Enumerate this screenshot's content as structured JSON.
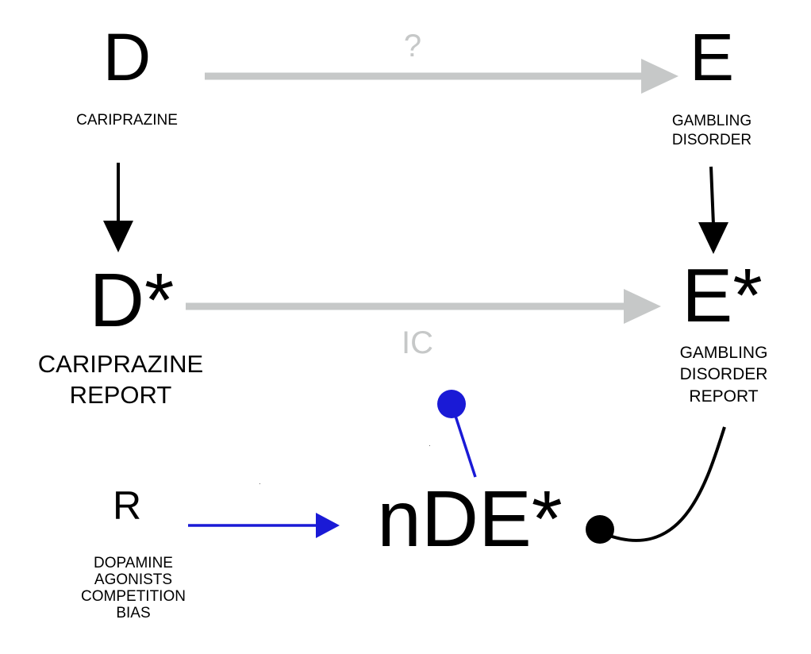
{
  "nodes": {
    "d": {
      "letter": "D",
      "caption": "CARIPRAZINE"
    },
    "e": {
      "letter": "E",
      "caption": "GAMBLING\nDISORDER"
    },
    "d_star": {
      "letter": "D*",
      "caption": "CARIPRAZINE\nREPORT"
    },
    "e_star": {
      "letter": "E*",
      "caption": "GAMBLING\nDISORDER\nREPORT"
    },
    "r": {
      "letter": "R",
      "caption": "DOPAMINE\nAGONISTS\nCOMPETITION\nBIAS"
    },
    "nde_star": {
      "letter": "nDE*"
    }
  },
  "edges": {
    "d_to_e_label": "?",
    "d_star_to_e_star_label": "IC"
  },
  "colors": {
    "gray_arrow": "#c6c8c8",
    "black_arrow": "#000000",
    "blue_arrow": "#1a1ad6"
  }
}
